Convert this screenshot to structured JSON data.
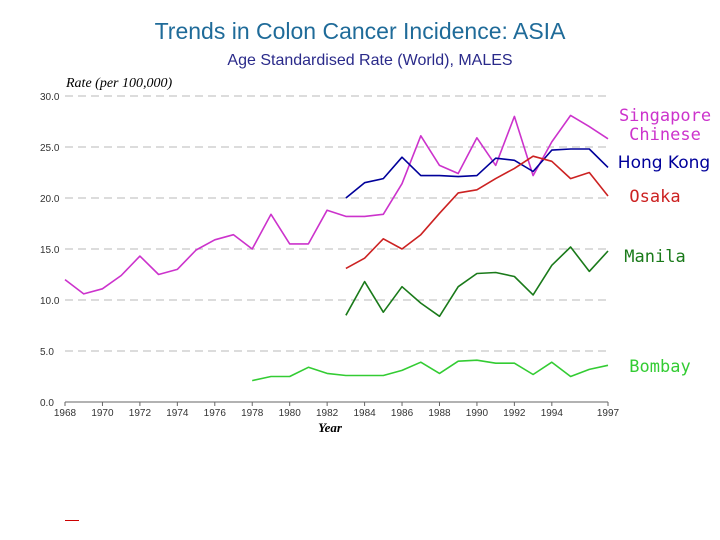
{
  "title": "Trends in Colon Cancer Incidence: ASIA",
  "subtitle": "Age Standardised Rate (World), MALES",
  "chart_data": {
    "type": "line",
    "ylabel": "Rate (per 100,000)",
    "xlabel": "Year",
    "xlim": [
      1968,
      1997
    ],
    "ylim": [
      0,
      30
    ],
    "x_ticks": [
      "1968",
      "1970",
      "1972",
      "1974",
      "1976",
      "1978",
      "1980",
      "1982",
      "1984",
      "1986",
      "1988",
      "1990",
      "1992",
      "1994",
      "1997"
    ],
    "y_ticks": [
      "0.0",
      "5.0",
      "10.0",
      "15.0",
      "20.0",
      "25.0",
      "30.0"
    ],
    "grid": "horizontal dashed",
    "series": [
      {
        "name": "Singapore Chinese",
        "label": "Singapore\nChinese",
        "color": "#cc33cc",
        "points": [
          [
            1968,
            12.0
          ],
          [
            1969,
            10.6
          ],
          [
            1970,
            11.1
          ],
          [
            1971,
            12.4
          ],
          [
            1972,
            14.3
          ],
          [
            1973,
            12.5
          ],
          [
            1974,
            13.0
          ],
          [
            1975,
            14.9
          ],
          [
            1976,
            15.9
          ],
          [
            1977,
            16.4
          ],
          [
            1978,
            15.0
          ],
          [
            1979,
            18.4
          ],
          [
            1980,
            15.5
          ],
          [
            1981,
            15.5
          ],
          [
            1982,
            18.8
          ],
          [
            1983,
            18.2
          ],
          [
            1984,
            18.2
          ],
          [
            1985,
            18.4
          ],
          [
            1986,
            21.4
          ],
          [
            1987,
            26.1
          ],
          [
            1988,
            23.2
          ],
          [
            1989,
            22.4
          ],
          [
            1990,
            25.9
          ],
          [
            1991,
            23.2
          ],
          [
            1992,
            28.0
          ],
          [
            1993,
            22.2
          ],
          [
            1994,
            25.5
          ],
          [
            1995,
            28.1
          ],
          [
            1996,
            27.0
          ],
          [
            1997,
            25.8
          ]
        ]
      },
      {
        "name": "Hong Kong",
        "label": "Hong Kong",
        "color": "#00009a",
        "points": [
          [
            1983,
            20.0
          ],
          [
            1984,
            21.5
          ],
          [
            1985,
            21.9
          ],
          [
            1986,
            24.0
          ],
          [
            1987,
            22.2
          ],
          [
            1988,
            22.2
          ],
          [
            1989,
            22.1
          ],
          [
            1990,
            22.2
          ],
          [
            1991,
            23.9
          ],
          [
            1992,
            23.7
          ],
          [
            1993,
            22.6
          ],
          [
            1994,
            24.7
          ],
          [
            1995,
            24.8
          ],
          [
            1996,
            24.8
          ],
          [
            1997,
            23.0
          ]
        ]
      },
      {
        "name": "Osaka",
        "label": "Osaka",
        "color": "#cc2222",
        "points": [
          [
            1983,
            13.1
          ],
          [
            1984,
            14.1
          ],
          [
            1985,
            16.0
          ],
          [
            1986,
            15.0
          ],
          [
            1987,
            16.4
          ],
          [
            1988,
            18.5
          ],
          [
            1989,
            20.5
          ],
          [
            1990,
            20.8
          ],
          [
            1991,
            21.9
          ],
          [
            1992,
            22.9
          ],
          [
            1993,
            24.1
          ],
          [
            1994,
            23.6
          ],
          [
            1995,
            21.9
          ],
          [
            1996,
            22.5
          ],
          [
            1997,
            20.2
          ]
        ]
      },
      {
        "name": "Manila",
        "label": "Manila",
        "color": "#1a7a1a",
        "points": [
          [
            1983,
            8.5
          ],
          [
            1984,
            11.8
          ],
          [
            1985,
            8.8
          ],
          [
            1986,
            11.3
          ],
          [
            1987,
            9.7
          ],
          [
            1988,
            8.4
          ],
          [
            1989,
            11.3
          ],
          [
            1990,
            12.6
          ],
          [
            1991,
            12.7
          ],
          [
            1992,
            12.3
          ],
          [
            1993,
            10.5
          ],
          [
            1994,
            13.4
          ],
          [
            1995,
            15.2
          ],
          [
            1996,
            12.8
          ],
          [
            1997,
            14.8
          ]
        ]
      },
      {
        "name": "Bombay",
        "label": "Bombay",
        "color": "#33cc33",
        "points": [
          [
            1978,
            2.1
          ],
          [
            1979,
            2.5
          ],
          [
            1980,
            2.5
          ],
          [
            1981,
            3.4
          ],
          [
            1982,
            2.8
          ],
          [
            1983,
            2.6
          ],
          [
            1984,
            2.6
          ],
          [
            1985,
            2.6
          ],
          [
            1986,
            3.1
          ],
          [
            1987,
            3.9
          ],
          [
            1988,
            2.8
          ],
          [
            1989,
            4.0
          ],
          [
            1990,
            4.1
          ],
          [
            1991,
            3.8
          ],
          [
            1992,
            3.8
          ],
          [
            1993,
            2.7
          ],
          [
            1994,
            3.9
          ],
          [
            1995,
            2.5
          ],
          [
            1996,
            3.2
          ],
          [
            1997,
            3.6
          ]
        ]
      }
    ]
  }
}
